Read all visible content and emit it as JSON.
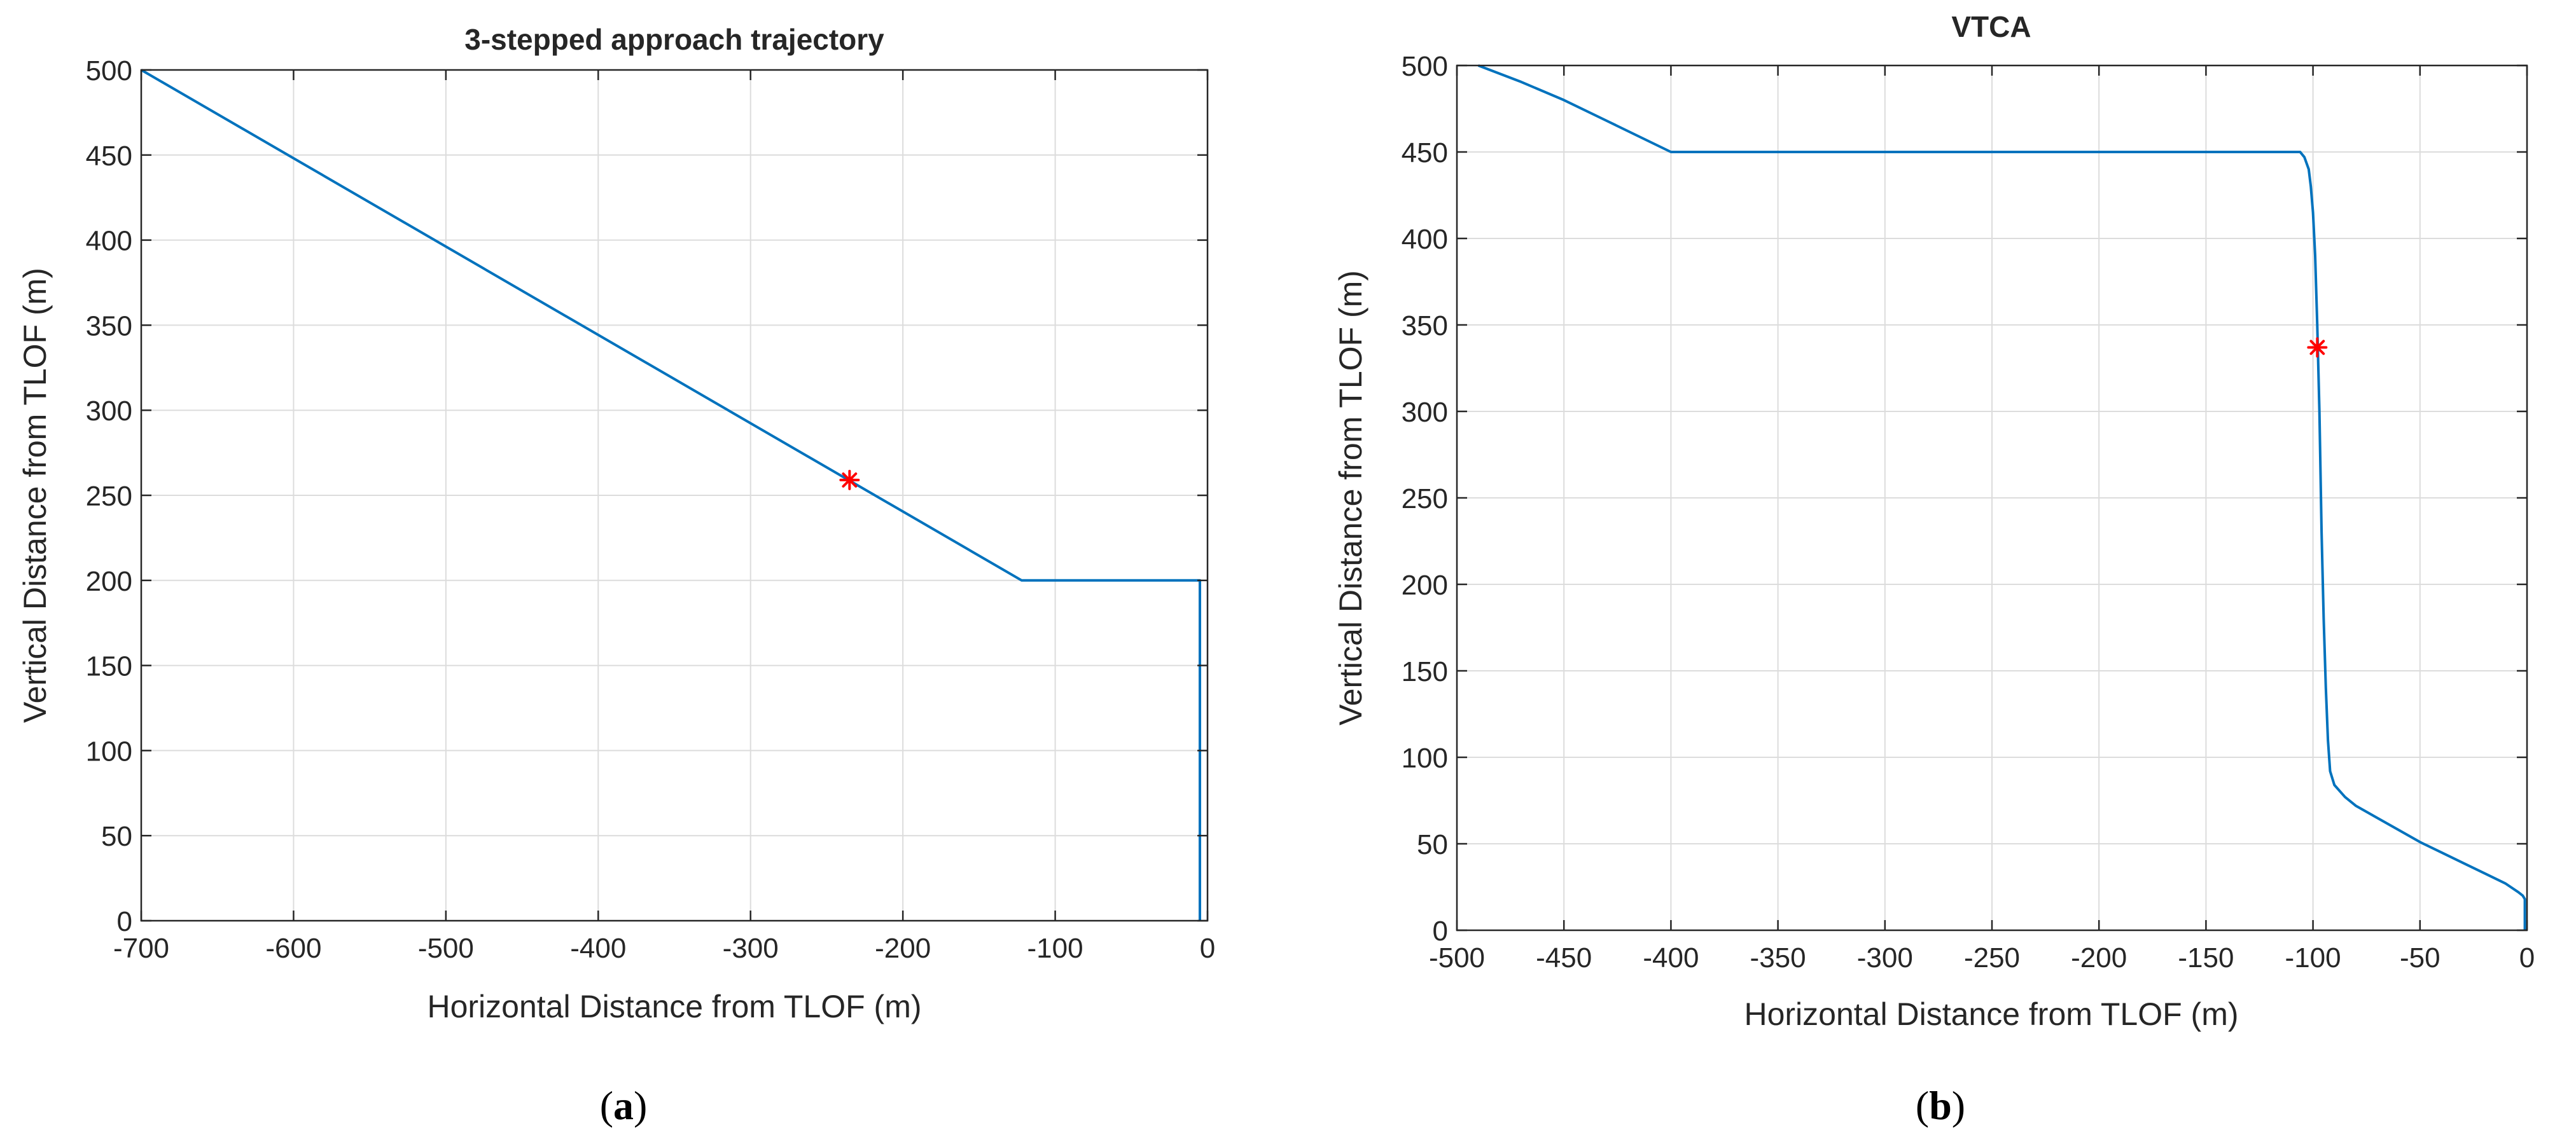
{
  "chart_data": [
    {
      "type": "line",
      "title": "3-stepped approach trajectory",
      "xlabel": "Horizontal Distance from TLOF (m)",
      "ylabel": "Vertical Distance from TLOF (m)",
      "panel_label": "a",
      "xlim": [
        -700,
        0
      ],
      "ylim": [
        0,
        500
      ],
      "xticks": [
        -700,
        -600,
        -500,
        -400,
        -300,
        -200,
        -100,
        0
      ],
      "xtick_labels": [
        "-700",
        "-600",
        "-500",
        "-400",
        "-300",
        "-200",
        "-100",
        "0"
      ],
      "yticks": [
        0,
        50,
        100,
        150,
        200,
        250,
        300,
        350,
        400,
        450,
        500
      ],
      "ytick_labels": [
        "0",
        "50",
        "100",
        "150",
        "200",
        "250",
        "300",
        "350",
        "400",
        "450",
        "500"
      ],
      "grid": true,
      "series": [
        {
          "name": "trajectory",
          "color": "#0072BD",
          "x": [
            -700,
            -122,
            -5,
            -5
          ],
          "y": [
            500,
            200,
            200,
            0
          ]
        }
      ],
      "markers": [
        {
          "name": "transition point",
          "symbol": "*",
          "color": "#FF0000",
          "x": -235,
          "y": 259
        }
      ]
    },
    {
      "type": "line",
      "title": "VTCA",
      "xlabel": "Horizontal Distance from TLOF (m)",
      "ylabel": "Vertical Distance from TLOF (m)",
      "panel_label": "b",
      "xlim": [
        -500,
        0
      ],
      "ylim": [
        0,
        500
      ],
      "xticks": [
        -500,
        -450,
        -400,
        -350,
        -300,
        -250,
        -200,
        -150,
        -100,
        -50,
        0
      ],
      "xtick_labels": [
        "-500",
        "-450",
        "-400",
        "-350",
        "-300",
        "-250",
        "-200",
        "-150",
        "-100",
        "-50",
        "0"
      ],
      "yticks": [
        0,
        50,
        100,
        150,
        200,
        250,
        300,
        350,
        400,
        450,
        500
      ],
      "ytick_labels": [
        "0",
        "50",
        "100",
        "150",
        "200",
        "250",
        "300",
        "350",
        "400",
        "450",
        "500"
      ],
      "grid": true,
      "series": [
        {
          "name": "trajectory",
          "color": "#0072BD",
          "x": [
            -490,
            -470,
            -450,
            -430,
            -415,
            -400,
            -106,
            -104,
            -102,
            -101,
            -100,
            -99,
            -98,
            -97,
            -96,
            -95,
            -94,
            -93,
            -92,
            -90,
            -85,
            -80,
            -70,
            -60,
            -50,
            -40,
            -30,
            -20,
            -10,
            -4,
            -2,
            -1,
            -1
          ],
          "y": [
            500,
            490.5,
            480,
            468,
            459,
            450,
            450,
            447,
            440,
            430,
            415,
            390,
            350,
            300,
            230,
            180,
            140,
            110,
            92,
            84,
            77,
            72,
            65,
            58,
            51,
            45,
            39,
            33,
            27,
            22,
            20,
            18,
            0
          ]
        }
      ],
      "markers": [
        {
          "name": "transition point",
          "symbol": "*",
          "color": "#FF0000",
          "x": -98,
          "y": 337
        }
      ]
    }
  ],
  "style": {
    "axis_color": "#262626",
    "grid_color": "#DCDCDC",
    "text_color": "#262626"
  }
}
